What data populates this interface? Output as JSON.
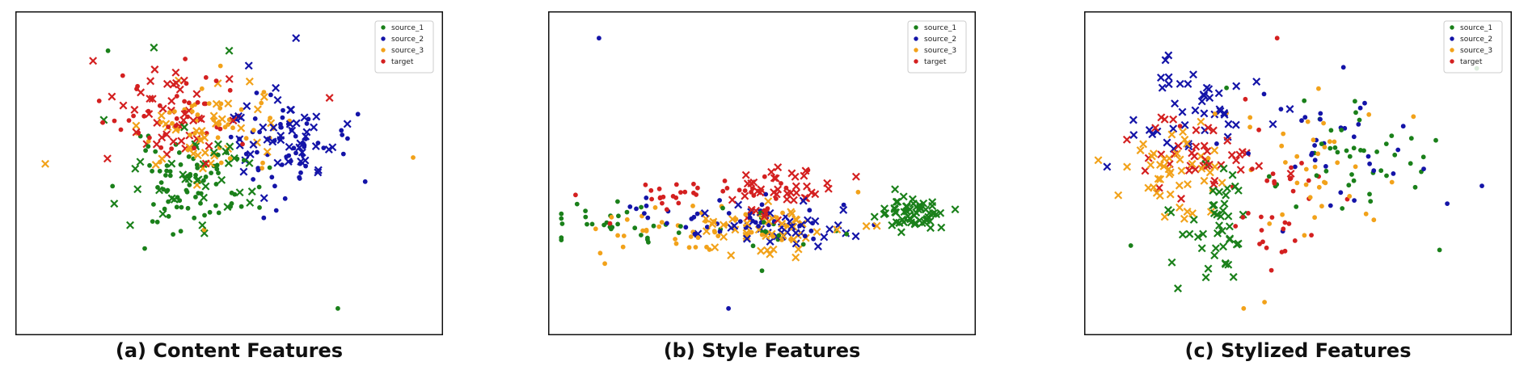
{
  "chart_data": [
    {
      "type": "scatter",
      "title": "(a) Content Features",
      "caption": "(a) Content Features",
      "xlabel": "",
      "ylabel": "",
      "xlim": [
        0,
        100
      ],
      "ylim": [
        0,
        100
      ],
      "legend_position": "top-right",
      "legend": [
        "source_1",
        "source_2",
        "source_3",
        "target"
      ],
      "clusters": [
        {
          "series": "source_1",
          "marker": "dot",
          "n": 75,
          "seed": 11,
          "cx": 41,
          "cy": 46,
          "sx": 8,
          "sy": 7
        },
        {
          "series": "source_1",
          "marker": "cross",
          "n": 35,
          "seed": 12,
          "cx": 40,
          "cy": 48,
          "sx": 8,
          "sy": 7
        },
        {
          "series": "source_2",
          "marker": "dot",
          "n": 55,
          "seed": 13,
          "cx": 62,
          "cy": 58,
          "sx": 8,
          "sy": 8
        },
        {
          "series": "source_2",
          "marker": "cross",
          "n": 45,
          "seed": 14,
          "cx": 63,
          "cy": 61,
          "sx": 7,
          "sy": 7
        },
        {
          "series": "source_3",
          "marker": "dot",
          "n": 45,
          "seed": 15,
          "cx": 46,
          "cy": 65,
          "sx": 9,
          "sy": 9
        },
        {
          "series": "source_3",
          "marker": "cross",
          "n": 35,
          "seed": 16,
          "cx": 45,
          "cy": 63,
          "sx": 8,
          "sy": 9
        },
        {
          "series": "target",
          "marker": "dot",
          "n": 40,
          "seed": 17,
          "cx": 35,
          "cy": 70,
          "sx": 8,
          "sy": 8
        },
        {
          "series": "target",
          "marker": "cross",
          "n": 45,
          "seed": 18,
          "cx": 36,
          "cy": 67,
          "sx": 8,
          "sy": 9
        }
      ],
      "points": [
        {
          "series": "source_1",
          "marker": "dot",
          "x": 21,
          "y": 89
        },
        {
          "series": "source_1",
          "marker": "dot",
          "x": 76,
          "y": 7
        },
        {
          "series": "source_1",
          "marker": "cross",
          "x": 32,
          "y": 90
        },
        {
          "series": "source_1",
          "marker": "cross",
          "x": 50,
          "y": 89
        },
        {
          "series": "source_1",
          "marker": "cross",
          "x": 20,
          "y": 67
        },
        {
          "series": "source_2",
          "marker": "cross",
          "x": 66,
          "y": 93
        },
        {
          "series": "source_3",
          "marker": "cross",
          "x": 6,
          "y": 53
        },
        {
          "series": "source_3",
          "marker": "dot",
          "x": 94,
          "y": 55
        },
        {
          "series": "source_3",
          "marker": "dot",
          "x": 44,
          "y": 32
        },
        {
          "series": "target",
          "marker": "cross",
          "x": 74,
          "y": 74
        }
      ]
    },
    {
      "type": "scatter",
      "title": "(b) Style Features",
      "caption": "(b) Style Features",
      "xlabel": "",
      "ylabel": "",
      "xlim": [
        0,
        100
      ],
      "ylim": [
        0,
        100
      ],
      "legend_position": "top-right",
      "legend": [
        "source_1",
        "source_2",
        "source_3",
        "target"
      ],
      "clusters": [
        {
          "series": "source_1",
          "marker": "cross",
          "n": 60,
          "seed": 21,
          "cx": 86,
          "cy": 37,
          "sx": 4,
          "sy": 3
        },
        {
          "series": "source_1",
          "marker": "dot",
          "n": 30,
          "seed": 22,
          "cx": 15,
          "cy": 35,
          "sx": 8,
          "sy": 3
        },
        {
          "series": "source_1",
          "marker": "dot",
          "n": 15,
          "seed": 23,
          "cx": 46,
          "cy": 33,
          "sx": 11,
          "sy": 4
        },
        {
          "series": "source_2",
          "marker": "cross",
          "n": 35,
          "seed": 24,
          "cx": 55,
          "cy": 33,
          "sx": 10,
          "sy": 4
        },
        {
          "series": "source_2",
          "marker": "dot",
          "n": 40,
          "seed": 25,
          "cx": 40,
          "cy": 35,
          "sx": 16,
          "sy": 4
        },
        {
          "series": "source_3",
          "marker": "cross",
          "n": 45,
          "seed": 26,
          "cx": 53,
          "cy": 31,
          "sx": 11,
          "sy": 4
        },
        {
          "series": "source_3",
          "marker": "dot",
          "n": 45,
          "seed": 27,
          "cx": 35,
          "cy": 32,
          "sx": 15,
          "sy": 4
        },
        {
          "series": "target",
          "marker": "cross",
          "n": 40,
          "seed": 28,
          "cx": 56,
          "cy": 44,
          "sx": 9,
          "sy": 4
        },
        {
          "series": "target",
          "marker": "dot",
          "n": 35,
          "seed": 29,
          "cx": 35,
          "cy": 44,
          "sx": 12,
          "sy": 3
        }
      ],
      "points": [
        {
          "series": "source_2",
          "marker": "dot",
          "x": 11,
          "y": 93
        },
        {
          "series": "source_2",
          "marker": "dot",
          "x": 42,
          "y": 7
        },
        {
          "series": "source_1",
          "marker": "dot",
          "x": 50,
          "y": 19
        },
        {
          "series": "source_3",
          "marker": "dot",
          "x": 73,
          "y": 44
        },
        {
          "series": "target",
          "marker": "dot",
          "x": 61,
          "y": 51
        }
      ]
    },
    {
      "type": "scatter",
      "title": "(c) Stylized Features",
      "caption": "(c) Stylized Features",
      "xlabel": "",
      "ylabel": "",
      "xlim": [
        0,
        100
      ],
      "ylim": [
        0,
        100
      ],
      "legend_position": "top-right",
      "legend": [
        "source_1",
        "source_2",
        "source_3",
        "target"
      ],
      "clusters": [
        {
          "series": "source_2",
          "marker": "cross",
          "n": 45,
          "seed": 31,
          "cx": 25,
          "cy": 71,
          "sx": 8,
          "sy": 8
        },
        {
          "series": "source_2",
          "marker": "dot",
          "n": 35,
          "seed": 32,
          "cx": 60,
          "cy": 60,
          "sx": 13,
          "sy": 10
        },
        {
          "series": "source_1",
          "marker": "cross",
          "n": 45,
          "seed": 33,
          "cx": 30,
          "cy": 32,
          "sx": 5,
          "sy": 8
        },
        {
          "series": "source_1",
          "marker": "dot",
          "n": 45,
          "seed": 34,
          "cx": 62,
          "cy": 57,
          "sx": 12,
          "sy": 11
        },
        {
          "series": "source_3",
          "marker": "cross",
          "n": 45,
          "seed": 35,
          "cx": 21,
          "cy": 50,
          "sx": 6,
          "sy": 7
        },
        {
          "series": "source_3",
          "marker": "dot",
          "n": 40,
          "seed": 36,
          "cx": 53,
          "cy": 48,
          "sx": 12,
          "sy": 12
        },
        {
          "series": "target",
          "marker": "cross",
          "n": 40,
          "seed": 37,
          "cx": 28,
          "cy": 57,
          "sx": 7,
          "sy": 6
        },
        {
          "series": "target",
          "marker": "dot",
          "n": 35,
          "seed": 38,
          "cx": 45,
          "cy": 40,
          "sx": 7,
          "sy": 12
        }
      ],
      "points": [
        {
          "series": "target",
          "marker": "dot",
          "x": 45,
          "y": 93
        },
        {
          "series": "source_2",
          "marker": "dot",
          "x": 94,
          "y": 46
        },
        {
          "series": "source_1",
          "marker": "dot",
          "x": 10,
          "y": 27
        },
        {
          "series": "source_3",
          "marker": "dot",
          "x": 37,
          "y": 7
        },
        {
          "series": "source_3",
          "marker": "dot",
          "x": 42,
          "y": 9
        },
        {
          "series": "source_3",
          "marker": "cross",
          "x": 7,
          "y": 43
        }
      ]
    }
  ],
  "colors": {
    "source_1": "#1a801a",
    "source_2": "#1414a8",
    "source_3": "#f2a21a",
    "target": "#d42020",
    "axes": "#111111",
    "background": "#ffffff"
  }
}
